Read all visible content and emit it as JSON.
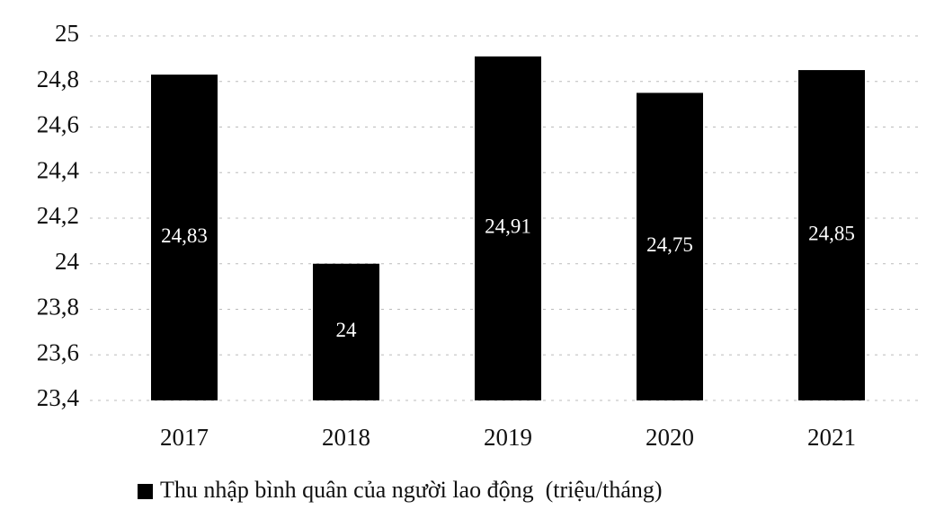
{
  "chart_data": {
    "type": "bar",
    "categories": [
      "2017",
      "2018",
      "2019",
      "2020",
      "2021"
    ],
    "series": [
      {
        "name": "Thu nhập bình quân của người lao động  (triệu/tháng)",
        "color": "#000000",
        "values": [
          24.83,
          24,
          24.91,
          24.75,
          24.85
        ],
        "value_labels": [
          "24,83",
          "24",
          "24,91",
          "24,75",
          "24,85"
        ]
      }
    ],
    "ylim": [
      23.4,
      25
    ],
    "yticks": [
      {
        "value": 23.4,
        "label": "23,4"
      },
      {
        "value": 23.6,
        "label": "23,6"
      },
      {
        "value": 23.8,
        "label": "23,8"
      },
      24,
      {
        "value": 24.2,
        "label": "24,2"
      },
      {
        "value": 24.4,
        "label": "24,4"
      },
      {
        "value": 24.6,
        "label": "24,6"
      },
      {
        "value": 24.8,
        "label": "24,8"
      },
      25
    ],
    "grid": true,
    "legend": "bottom"
  }
}
